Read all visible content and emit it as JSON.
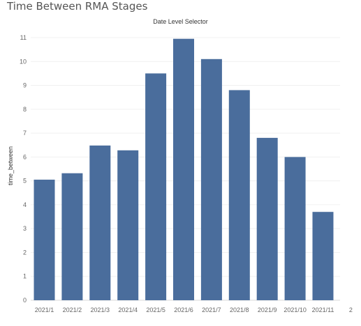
{
  "dashboard": {
    "title": "Time Between RMA Stages"
  },
  "chart_data": {
    "type": "bar",
    "title": "Date Level Selector",
    "xlabel": "",
    "ylabel": "time_between",
    "categories": [
      "2021/1",
      "2021/2",
      "2021/3",
      "2021/4",
      "2021/5",
      "2021/6",
      "2021/7",
      "2021/8",
      "2021/9",
      "2021/10",
      "2021/11",
      "2"
    ],
    "values": [
      5.05,
      5.32,
      6.48,
      6.28,
      9.5,
      10.95,
      10.1,
      8.8,
      6.8,
      6.0,
      3.7,
      null
    ],
    "ylim": [
      0,
      11
    ],
    "yticks": [
      0,
      1,
      2,
      3,
      4,
      5,
      6,
      7,
      8,
      9,
      10,
      11
    ],
    "grid": true,
    "bar_color": "#4a6d9c"
  }
}
